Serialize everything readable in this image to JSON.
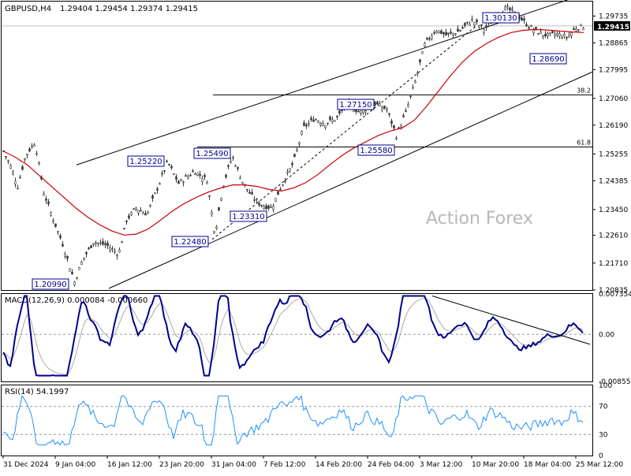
{
  "header": {
    "symbol": "GBPUSD,H4",
    "ohlc": "1.29404 1.29454 1.29374 1.29415"
  },
  "watermark": "Action Forex",
  "colors": {
    "candle_up": "#3a3a3a",
    "candle_down": "#3a3a3a",
    "ma": "#cc0000",
    "channel": "#000000",
    "fib": "#000000",
    "trendline": "#000000",
    "macd": "#00008b",
    "macd_signal": "#a9a9a9",
    "rsi": "#1e90ff",
    "label_border": "#00008b",
    "label_text": "#00008b",
    "price_box_bg": "#000000",
    "price_box_text": "#ffffff",
    "grid_level": "#c0c0c0"
  },
  "chart_data": [
    {
      "type": "candlestick",
      "name": "price",
      "ylim": [
        1.20835,
        1.30205
      ],
      "yticks": [
        "1.29735",
        "1.28865",
        "1.27995",
        "1.27060",
        "1.26190",
        "1.25255",
        "1.24385",
        "1.23450",
        "1.22610",
        "1.21710",
        "1.20835"
      ],
      "current_price": "1.29415",
      "ma_series": [
        1.2535,
        1.2515,
        1.249,
        1.2455,
        1.242,
        1.2385,
        1.235,
        1.232,
        1.2295,
        1.2275,
        1.2262,
        1.2265,
        1.2282,
        1.231,
        1.234,
        1.2365,
        1.2385,
        1.2402,
        1.2415,
        1.2425,
        1.2425,
        1.242,
        1.241,
        1.2405,
        1.2415,
        1.2432,
        1.2458,
        1.249,
        1.252,
        1.2545,
        1.2565,
        1.2585,
        1.26,
        1.261,
        1.2635,
        1.268,
        1.273,
        1.278,
        1.2825,
        1.286,
        1.2885,
        1.2905,
        1.292,
        1.2927,
        1.293,
        1.2928,
        1.2925,
        1.2922,
        1.292
      ],
      "price_labels": [
        "1.30130",
        "1.28690",
        "1.27150",
        "1.25580",
        "1.25490",
        "1.25220",
        "1.23310",
        "1.22480",
        "1.20990"
      ],
      "fib_levels": [
        {
          "label": "38.2",
          "value": 1.27175
        },
        {
          "label": "61.8",
          "value": 1.2548
        }
      ]
    },
    {
      "type": "line",
      "name": "MACD(12,26,9) 0.000084 -0.000660",
      "ylim": [
        -0.008558,
        0.007354
      ],
      "yticks": [
        "0.007354",
        "0.00",
        "-0.008558"
      ]
    },
    {
      "type": "line",
      "name": "RSI(14) 54.1997",
      "ylim": [
        0,
        100
      ],
      "yticks": [
        "100",
        "70",
        "30",
        "0"
      ],
      "levels": [
        70,
        30
      ]
    }
  ],
  "x_axis": {
    "labels": [
      "31 Dec 2024",
      "9 Jan 04:00",
      "16 Jan 12:00",
      "23 Jan 20:00",
      "31 Jan 04:00",
      "7 Feb 12:00",
      "14 Feb 20:00",
      "24 Feb 04:00",
      "3 Mar 12:00",
      "10 Mar 20:00",
      "18 Mar 04:00",
      "25 Mar 12:00"
    ]
  }
}
